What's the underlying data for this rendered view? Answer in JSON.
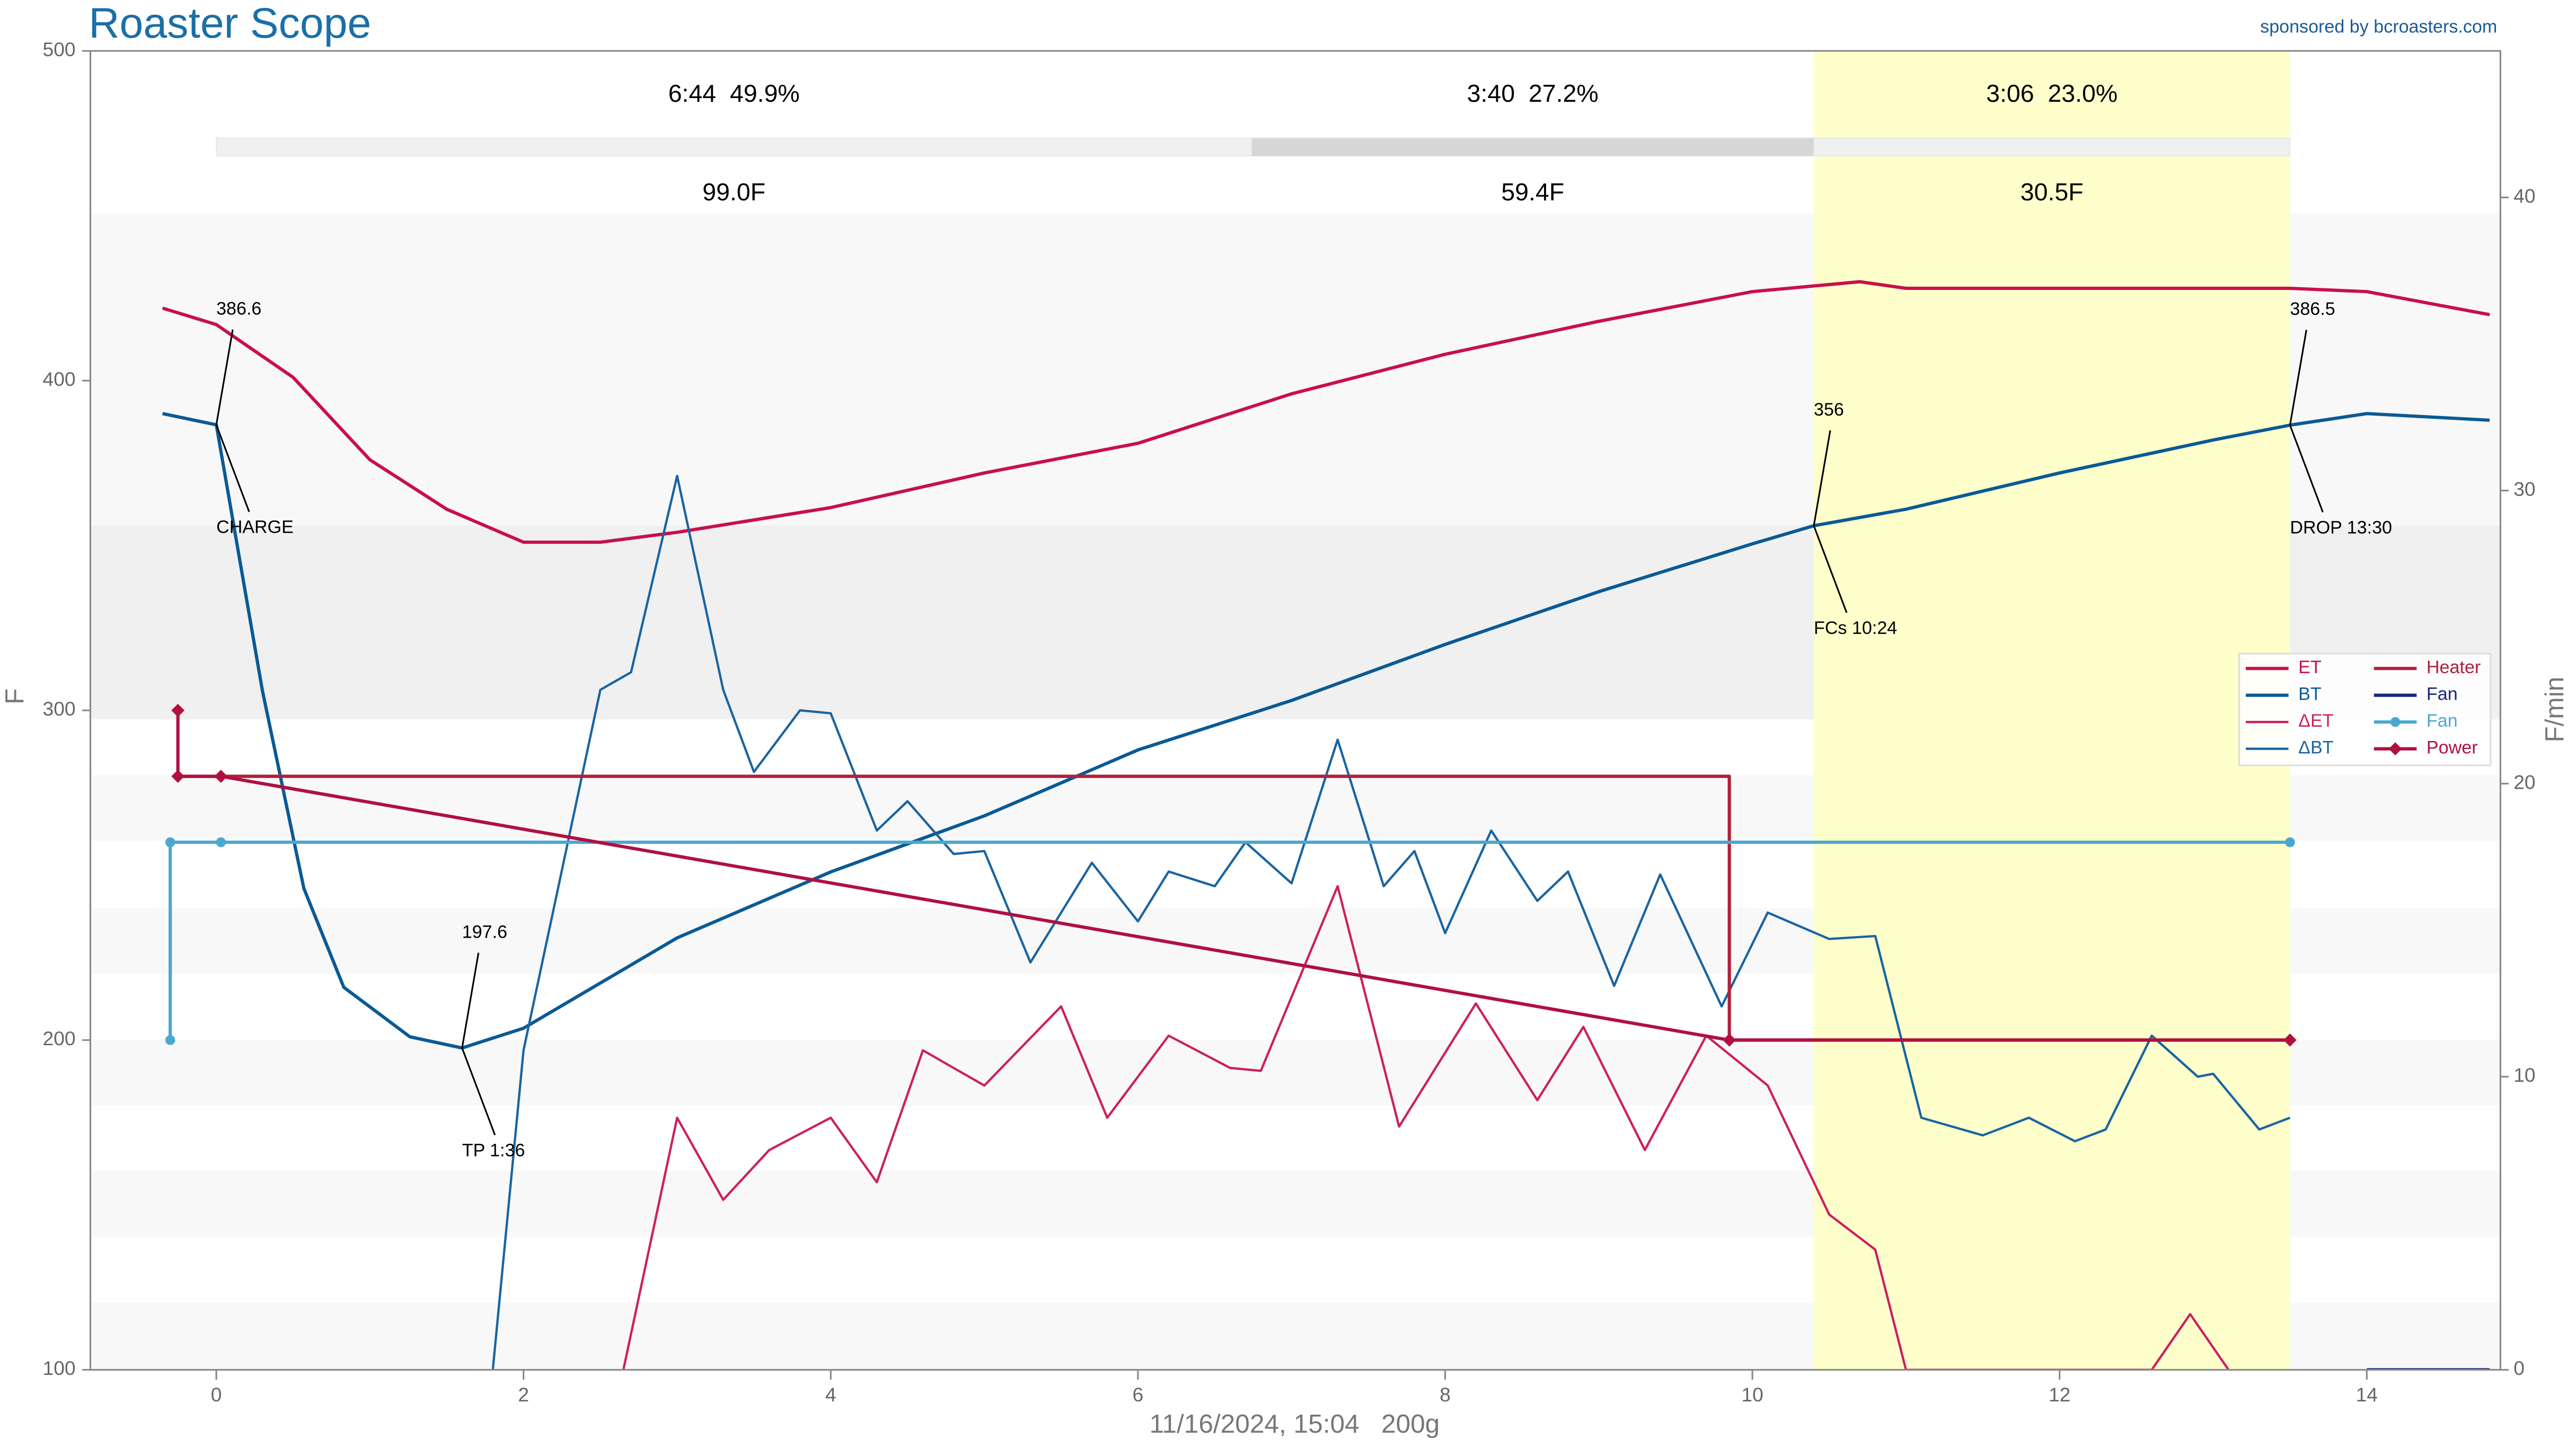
{
  "chart_data": {
    "type": "line",
    "title": "Roaster Scope",
    "subtitle": "sponsored by bcroasters.com",
    "xlabel": "11/16/2024, 15:04   200g",
    "ylabel": "F",
    "y2label": "F/min",
    "xlim": [
      -0.82,
      14.87
    ],
    "xticks": [
      0,
      2,
      4,
      6,
      8,
      10,
      12,
      14
    ],
    "ylim": [
      100,
      500
    ],
    "yticks": [
      100,
      200,
      300,
      400,
      500
    ],
    "y2lim": [
      0,
      45
    ],
    "y2ticks": [
      0,
      10,
      20,
      30,
      40
    ],
    "legend": "right",
    "series": [
      {
        "name": "ET",
        "color": "#c8104a",
        "x": [
          -0.35,
          0,
          0.5,
          1,
          1.5,
          2,
          2.5,
          3,
          4,
          5,
          6,
          7,
          8,
          9,
          10,
          10.7,
          11,
          12,
          13,
          13.5,
          14,
          14.8
        ],
        "values": [
          422,
          417,
          401,
          376,
          361,
          351,
          351,
          354,
          361.5,
          372,
          381,
          396,
          408,
          418,
          427,
          430,
          428,
          428,
          428,
          428,
          427,
          420
        ]
      },
      {
        "name": "BT",
        "color": "#0a5a96",
        "x": [
          -0.35,
          0,
          0.3,
          0.57,
          0.83,
          1.26,
          1.6,
          2,
          3,
          4,
          5,
          6,
          7,
          8,
          9,
          10,
          10.4,
          11,
          12,
          13,
          13.5,
          14,
          14.8
        ],
        "values": [
          390,
          386.6,
          306,
          246,
          216,
          201,
          197.6,
          203.6,
          231,
          251,
          268,
          288,
          303,
          320,
          336,
          350.5,
          356,
          361,
          372,
          382,
          386.5,
          390,
          388
        ]
      },
      {
        "name": "ΔET",
        "color": "#cc2060",
        "axis": "y2",
        "x": [
          2.65,
          3,
          3.3,
          3.6,
          4,
          4.3,
          4.6,
          5,
          5.5,
          5.8,
          6.2,
          6.6,
          6.8,
          7.3,
          7.7,
          8.2,
          8.6,
          8.9,
          9.3,
          9.7,
          10.1,
          10.5,
          10.8,
          11,
          12.6,
          12.85,
          13.1
        ],
        "values": [
          0,
          8.6,
          5.8,
          7.5,
          8.6,
          6.4,
          10.9,
          9.7,
          12.4,
          8.6,
          11.4,
          10.3,
          10.2,
          16.5,
          8.3,
          12.5,
          9.2,
          11.7,
          7.5,
          11.4,
          9.7,
          5.3,
          4.1,
          0,
          0,
          1.9,
          0
        ]
      },
      {
        "name": "ΔBT",
        "color": "#1a64a0",
        "axis": "y2",
        "x": [
          1.8,
          2,
          2.5,
          2.7,
          3,
          3.3,
          3.5,
          3.8,
          4,
          4.3,
          4.5,
          4.8,
          5,
          5.3,
          5.7,
          6,
          6.2,
          6.5,
          6.7,
          7,
          7.3,
          7.6,
          7.8,
          8,
          8.3,
          8.6,
          8.8,
          9.1,
          9.4,
          9.8,
          10.1,
          10.5,
          10.8,
          11.1,
          11.5,
          11.8,
          12.1,
          12.3,
          12.6,
          12.9,
          13,
          13.3,
          13.5
        ],
        "values": [
          0,
          10.9,
          23.2,
          23.8,
          30.5,
          23.2,
          20.4,
          22.5,
          22.4,
          18.4,
          19.4,
          17.6,
          17.7,
          13.9,
          17.3,
          15.3,
          17.0,
          16.5,
          18.0,
          16.6,
          21.5,
          16.5,
          17.7,
          14.9,
          18.4,
          16.0,
          17.0,
          13.1,
          16.9,
          12.4,
          15.6,
          14.7,
          14.8,
          8.6,
          8.0,
          8.6,
          7.8,
          8.2,
          11.4,
          10.0,
          10.1,
          8.2,
          8.6
        ]
      },
      {
        "name": "Heater",
        "color": "#b0203a",
        "x": [
          -0.25,
          9.85,
          9.85,
          13.5
        ],
        "values": [
          280,
          280,
          200,
          200
        ]
      },
      {
        "name": "Fan",
        "color": "#1a237e",
        "x": [
          14.0,
          14.8
        ],
        "values": [
          100,
          100
        ]
      },
      {
        "name": "Fan",
        "color": "#4aa8d0",
        "marker": "circle",
        "x": [
          -0.3,
          -0.3,
          0.03,
          13.5
        ],
        "values": [
          200,
          260,
          260,
          260
        ]
      },
      {
        "name": "Power",
        "color": "#b01040",
        "marker": "diamond",
        "x": [
          -0.25,
          -0.25,
          0.03,
          9.85,
          13.5
        ],
        "values": [
          300,
          280,
          280,
          200,
          200
        ]
      }
    ],
    "phases": [
      {
        "label": "6:44  49.9%",
        "delta": "99.0F",
        "start": 0,
        "end": 6.74
      },
      {
        "label": "3:40  27.2%",
        "delta": "59.4F",
        "start": 6.74,
        "end": 10.4
      },
      {
        "label": "3:06  23.0%",
        "delta": "30.5F",
        "start": 10.4,
        "end": 13.5
      }
    ],
    "annotations": [
      {
        "label": "CHARGE",
        "x": 0,
        "y": 386.6
      },
      {
        "label": "TP 1:36",
        "x": 1.6,
        "y": 197.6
      },
      {
        "label": "FCs 10:24",
        "x": 10.4,
        "y": 356.0
      },
      {
        "label": "DROP 13:30",
        "x": 13.5,
        "y": 386.5
      }
    ]
  }
}
